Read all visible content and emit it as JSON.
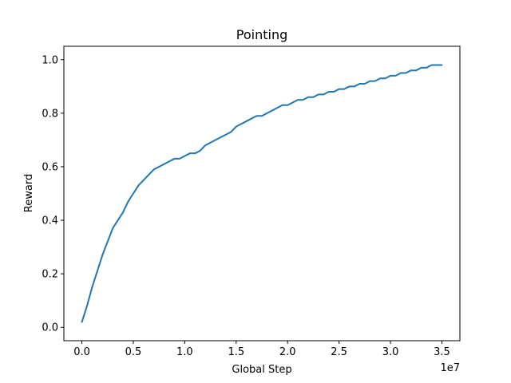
{
  "chart_data": {
    "type": "line",
    "title": "Pointing",
    "xlabel": "Global Step",
    "ylabel": "Reward",
    "x_offset_label": "1e7",
    "xlim": [
      -0.175,
      3.675
    ],
    "ylim": [
      -0.05,
      1.05
    ],
    "x_scale_multiplier": 10000000,
    "xticks": [
      0.0,
      0.5,
      1.0,
      1.5,
      2.0,
      2.5,
      3.0,
      3.5
    ],
    "xtick_labels": [
      "0.0",
      "0.5",
      "1.0",
      "1.5",
      "2.0",
      "2.5",
      "3.0",
      "3.5"
    ],
    "yticks": [
      0.0,
      0.2,
      0.4,
      0.6,
      0.8,
      1.0
    ],
    "ytick_labels": [
      "0.0",
      "0.2",
      "0.4",
      "0.6",
      "0.8",
      "1.0"
    ],
    "grid": false,
    "legend": "none",
    "colors": {
      "series": "#1f77b4"
    },
    "series": [
      {
        "x": [
          0.0,
          0.05,
          0.1,
          0.15,
          0.2,
          0.25,
          0.3,
          0.35,
          0.4,
          0.45,
          0.5,
          0.55,
          0.6,
          0.65,
          0.7,
          0.75,
          0.8,
          0.85,
          0.9,
          0.95,
          1.0,
          1.05,
          1.1,
          1.15,
          1.2,
          1.25,
          1.3,
          1.35,
          1.4,
          1.45,
          1.5,
          1.55,
          1.6,
          1.65,
          1.7,
          1.75,
          1.8,
          1.85,
          1.9,
          1.95,
          2.0,
          2.05,
          2.1,
          2.15,
          2.2,
          2.25,
          2.3,
          2.35,
          2.4,
          2.45,
          2.5,
          2.55,
          2.6,
          2.65,
          2.7,
          2.75,
          2.8,
          2.85,
          2.9,
          2.95,
          3.0,
          3.05,
          3.1,
          3.15,
          3.2,
          3.25,
          3.3,
          3.35,
          3.4,
          3.45,
          3.5
        ],
        "values": [
          0.02,
          0.08,
          0.15,
          0.21,
          0.27,
          0.32,
          0.37,
          0.4,
          0.43,
          0.47,
          0.5,
          0.53,
          0.55,
          0.57,
          0.59,
          0.6,
          0.61,
          0.62,
          0.63,
          0.63,
          0.64,
          0.65,
          0.65,
          0.66,
          0.68,
          0.69,
          0.7,
          0.71,
          0.72,
          0.73,
          0.75,
          0.76,
          0.77,
          0.78,
          0.79,
          0.79,
          0.8,
          0.81,
          0.82,
          0.83,
          0.83,
          0.84,
          0.85,
          0.85,
          0.86,
          0.86,
          0.87,
          0.87,
          0.88,
          0.88,
          0.89,
          0.89,
          0.9,
          0.9,
          0.91,
          0.91,
          0.92,
          0.92,
          0.93,
          0.93,
          0.94,
          0.94,
          0.95,
          0.95,
          0.96,
          0.96,
          0.97,
          0.97,
          0.98,
          0.98,
          0.98
        ]
      }
    ]
  }
}
